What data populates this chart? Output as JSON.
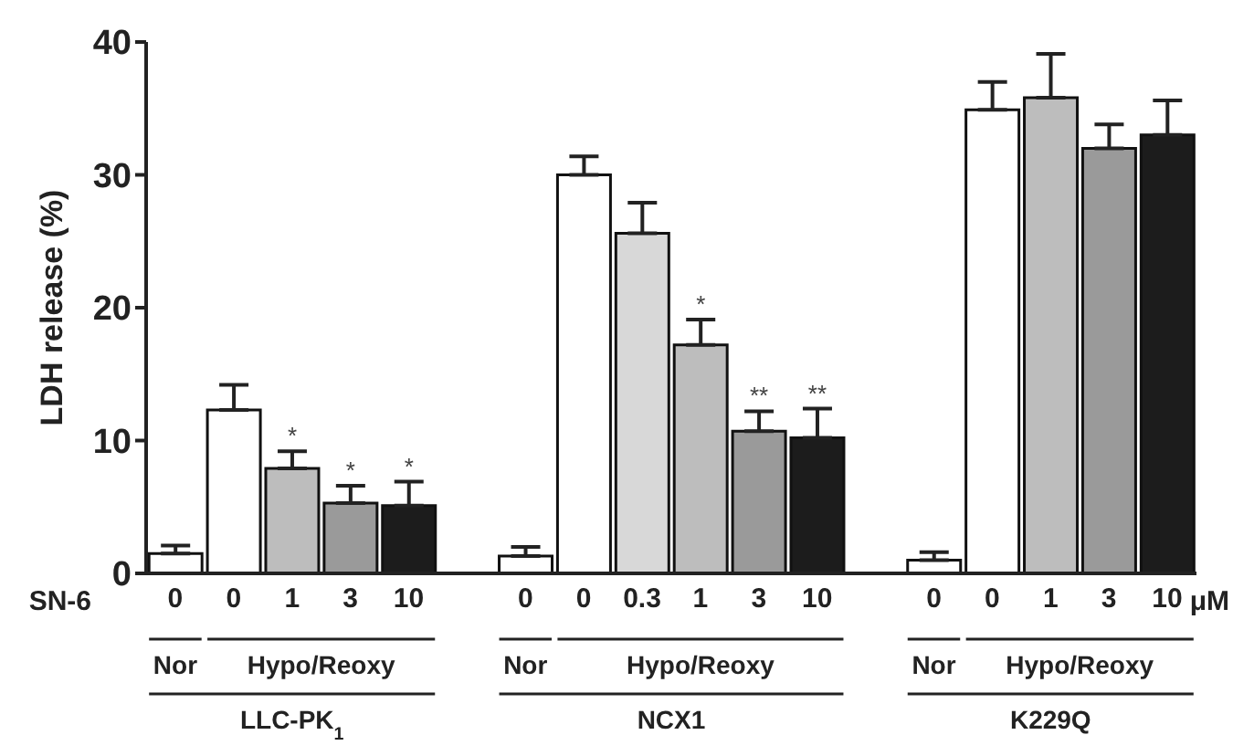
{
  "chart_data": {
    "type": "bar",
    "ylabel": "LDH release (%)",
    "xlabel": "SN-6",
    "categories": [
      "0",
      "0",
      "1",
      "3",
      "10",
      null,
      "0",
      "0",
      "0.3",
      "1",
      "3",
      "10",
      null,
      "0",
      "0",
      "1",
      "3",
      "10"
    ],
    "values": [
      1.5,
      12.3,
      7.9,
      5.3,
      5.1,
      null,
      1.3,
      30.0,
      25.6,
      17.2,
      10.7,
      10.2,
      null,
      1.0,
      34.9,
      35.8,
      32.0,
      33.0
    ],
    "errors": [
      [
        1.5,
        2.1
      ],
      [
        12.3,
        14.2
      ],
      [
        7.9,
        9.2
      ],
      [
        5.3,
        6.6
      ],
      [
        5.1,
        6.9
      ],
      null,
      [
        1.3,
        2.0
      ],
      [
        30.0,
        31.4
      ],
      [
        25.6,
        27.9
      ],
      [
        17.2,
        19.1
      ],
      [
        10.7,
        12.2
      ],
      [
        10.2,
        12.4
      ],
      null,
      [
        1.0,
        1.6
      ],
      [
        34.9,
        37.0
      ],
      [
        35.8,
        39.1
      ],
      [
        32.0,
        33.8
      ],
      [
        33.0,
        35.6
      ]
    ],
    "colors": [
      "#ffffff",
      "#ffffff",
      "#bdbdbd",
      "#9a9a9a",
      "#1c1c1c",
      null,
      "#ffffff",
      "#ffffff",
      "#d8d8d8",
      "#bdbdbd",
      "#9a9a9a",
      "#1c1c1c",
      null,
      "#ffffff",
      "#ffffff",
      "#bdbdbd",
      "#9a9a9a",
      "#1c1c1c"
    ],
    "value_labels": [
      null,
      null,
      "*",
      "*",
      "*",
      null,
      null,
      null,
      null,
      "*",
      "**",
      "**",
      null,
      null,
      null,
      null,
      null,
      null
    ],
    "ylim": [
      0,
      40
    ],
    "yticks": [
      0,
      10,
      20,
      30,
      40
    ],
    "annotations": [
      "μM",
      "Nor",
      "Hypo/Reoxy",
      "Nor",
      "Hypo/Reoxy",
      "Nor",
      "Hypo/Reoxy",
      "LLC-PK$_{1}$",
      "NCX1",
      "K229Q"
    ]
  }
}
